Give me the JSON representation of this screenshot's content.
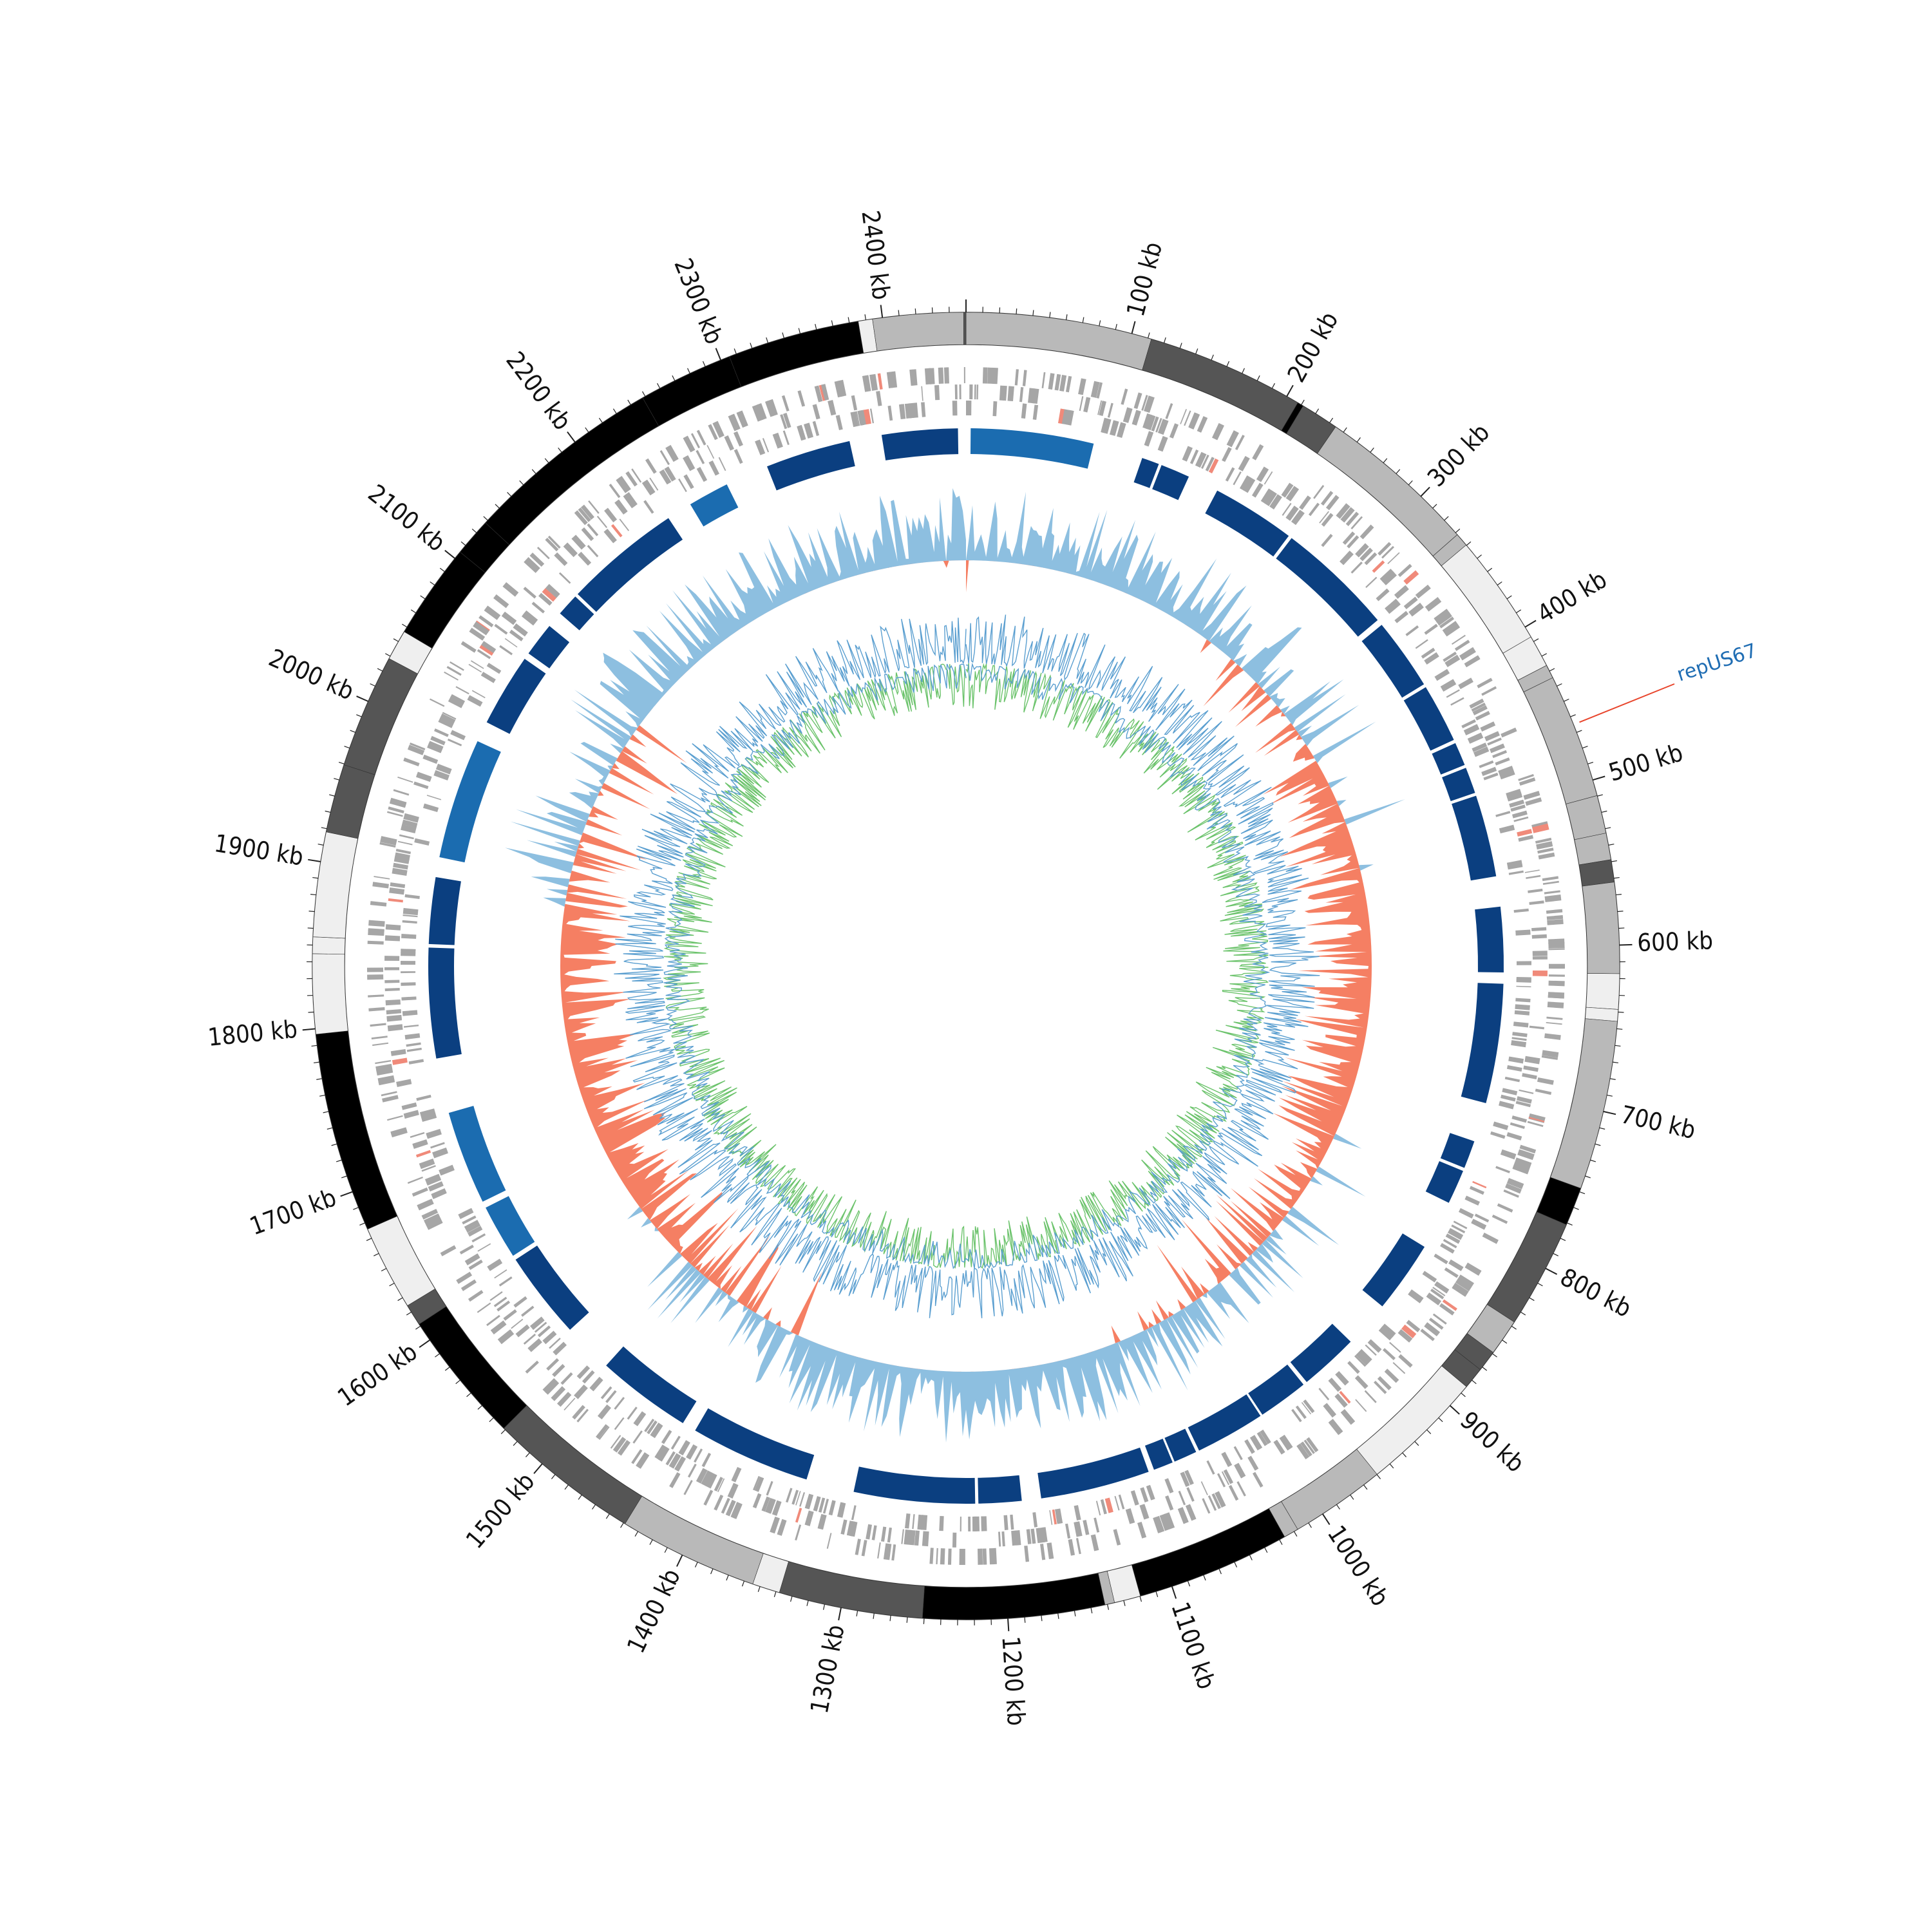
{
  "diagram": {
    "type": "circular-genome-map",
    "genome_length_kb": 2450,
    "tick_labels": [
      "100 kb",
      "200 kb",
      "300 kb",
      "400 kb",
      "500 kb",
      "600 kb",
      "700 kb",
      "800 kb",
      "900 kb",
      "1000 kb",
      "1100 kb",
      "1200 kb",
      "1300 kb",
      "1400 kb",
      "1500 kb",
      "1600 kb",
      "1700 kb",
      "1800 kb",
      "1900 kb",
      "2000 kb",
      "2100 kb",
      "2200 kb",
      "2300 kb",
      "2400 kb"
    ],
    "annotation": {
      "label": "repUS67",
      "position_kb": 465,
      "label_color": "#1f6db3",
      "line_color": "#e8452c"
    },
    "colors": {
      "contig_shades": [
        "#000000",
        "#555555",
        "#b9b9b9",
        "#efefef"
      ],
      "cds": "#a6a6a6",
      "cds_highlight": "#f08a7a",
      "homology_blocks": "#0b3f80",
      "homology_accent": "#1b6cb0",
      "gc_skew_positive": "#8dbfe0",
      "gc_skew_negative": "#f57f63",
      "gc_content_blue": "#5b9fd0",
      "gc_content_green": "#6cc36c"
    }
  }
}
